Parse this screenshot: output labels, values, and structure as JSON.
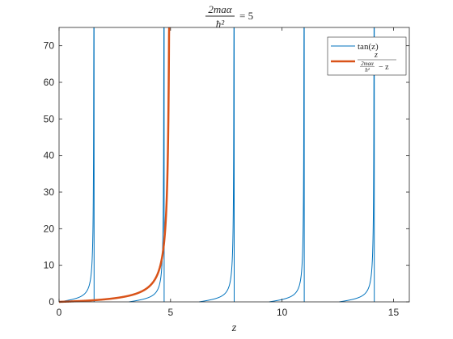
{
  "chart_data": {
    "type": "line",
    "title": {
      "numerator": "2maα",
      "denominator": "ħ²",
      "equals": "= 5"
    },
    "xlabel": "z",
    "ylabel": "",
    "xlim": [
      0,
      15.708
    ],
    "ylim": [
      0,
      75
    ],
    "xticks": [
      0,
      5,
      10,
      15
    ],
    "yticks": [
      0,
      10,
      20,
      30,
      40,
      50,
      60,
      70
    ],
    "xtick_labels": [
      "0",
      "5",
      "10",
      "15"
    ],
    "ytick_labels": [
      "0",
      "10",
      "20",
      "30",
      "40",
      "50",
      "60",
      "70"
    ],
    "grid": false,
    "legend_position": "top-right",
    "series": [
      {
        "key": "tan",
        "name": "tan(z)",
        "color": "#0072BD",
        "function": "tan(z)",
        "sample_points": [
          [
            0,
            0
          ],
          [
            0.785,
            1
          ],
          [
            1.2,
            2.57
          ],
          [
            1.5,
            14.1
          ],
          [
            1.55,
            48.1
          ],
          [
            3.14,
            0
          ],
          [
            3.93,
            1
          ],
          [
            4.6,
            8.86
          ],
          [
            4.7,
            75
          ],
          [
            6.28,
            0
          ],
          [
            7.0,
            0.87
          ],
          [
            7.8,
            75
          ],
          [
            9.42,
            0
          ],
          [
            10.5,
            1.75
          ],
          [
            10.98,
            75
          ],
          [
            12.57,
            0
          ],
          [
            13.5,
            1.81
          ],
          [
            14.12,
            75
          ]
        ]
      },
      {
        "key": "rhs",
        "name_parts": {
          "numerator": "z",
          "denominator_top": "2maα",
          "denominator_bottom": "ħ²",
          "denominator_tail": "− z"
        },
        "color": "#D95319",
        "function": "z / (5 - z)",
        "sample_points": [
          [
            0,
            0
          ],
          [
            1,
            0.25
          ],
          [
            2,
            0.667
          ],
          [
            3,
            1.5
          ],
          [
            4,
            4
          ],
          [
            4.5,
            9
          ],
          [
            4.8,
            24
          ],
          [
            4.9,
            49
          ],
          [
            4.935,
            75
          ]
        ]
      }
    ]
  }
}
